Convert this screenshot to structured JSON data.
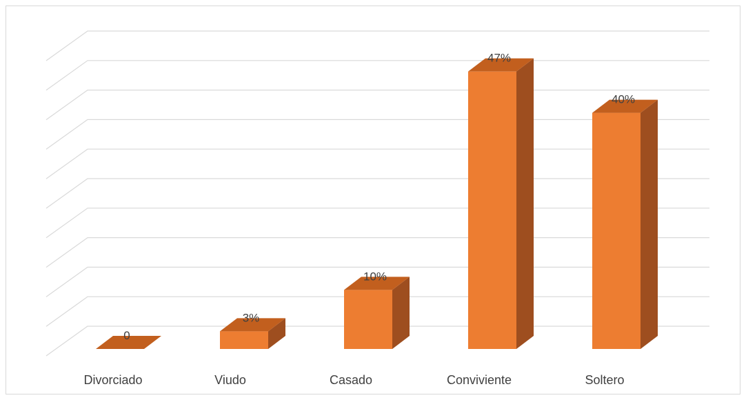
{
  "chart_data": {
    "type": "bar",
    "style": "3d-column",
    "categories": [
      "Divorciado",
      "Viudo",
      "Casado",
      "Conviviente",
      "Soltero"
    ],
    "values": [
      0,
      3,
      10,
      47,
      40
    ],
    "data_labels": [
      "0",
      "3%",
      "10%",
      "47%",
      "40%"
    ],
    "unit": "%",
    "ylim": [
      0,
      50
    ],
    "grid": true,
    "legend": "none",
    "colors": {
      "front": "#ED7D31",
      "side": "#9E4E1F",
      "top": "#C25F1E",
      "grid": "#D9D9D9"
    }
  }
}
